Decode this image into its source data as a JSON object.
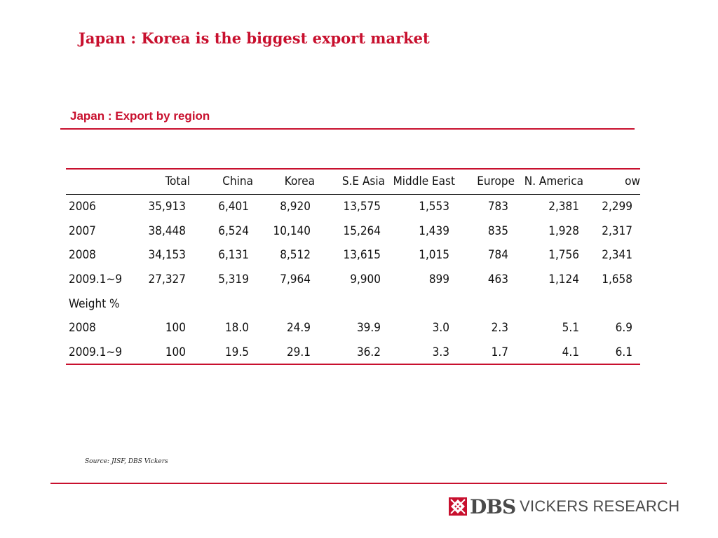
{
  "slide": {
    "title": "Japan : Korea is the biggest export market"
  },
  "table": {
    "title": "Japan : Export by region",
    "headers": [
      "",
      "Total",
      "China",
      "Korea",
      "S.E Asia",
      "Middle East",
      "Europe",
      "N. America",
      "ow"
    ],
    "rows": [
      [
        "2006",
        "35,913",
        "6,401",
        "8,920",
        "13,575",
        "1,553",
        "783",
        "2,381",
        "2,299"
      ],
      [
        "2007",
        "38,448",
        "6,524",
        "10,140",
        "15,264",
        "1,439",
        "835",
        "1,928",
        "2,317"
      ],
      [
        "2008",
        "34,153",
        "6,131",
        "8,512",
        "13,615",
        "1,015",
        "784",
        "1,756",
        "2,341"
      ],
      [
        "2009.1~9",
        "27,327",
        "5,319",
        "7,964",
        "9,900",
        "899",
        "463",
        "1,124",
        "1,658"
      ],
      [
        "Weight %",
        "",
        "",
        "",
        "",
        "",
        "",
        "",
        ""
      ],
      [
        "2008",
        "100",
        "18.0",
        "24.9",
        "39.9",
        "3.0",
        "2.3",
        "5.1",
        "6.9"
      ],
      [
        "2009.1~9",
        "100",
        "19.5",
        "29.1",
        "36.2",
        "3.3",
        "1.7",
        "4.1",
        "6.1"
      ]
    ]
  },
  "source": "Source: JISF, DBS Vickers",
  "logo": {
    "brand": "DBS",
    "tagline": "VICKERS RESEARCH"
  },
  "colors": {
    "accent": "#c8102e",
    "text": "#111111",
    "logo_gray": "#4a4a4a"
  }
}
